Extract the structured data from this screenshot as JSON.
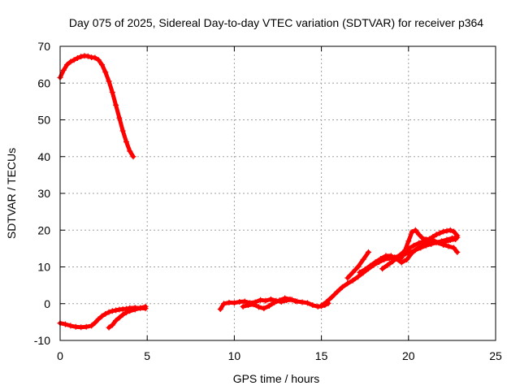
{
  "chart_data": {
    "type": "scatter",
    "title": "Day 075 of 2025, Sidereal Day-to-day VTEC variation (SDTVAR) for receiver p364",
    "xlabel": "GPS time / hours",
    "ylabel": "SDTVAR / TECUs",
    "xlim": [
      0,
      25
    ],
    "ylim": [
      -10,
      70
    ],
    "xticks": [
      0,
      5,
      10,
      15,
      20,
      25
    ],
    "yticks": [
      -10,
      0,
      10,
      20,
      30,
      40,
      50,
      60,
      70
    ],
    "grid": true,
    "marker": "+",
    "color": "#ff0000",
    "series": [
      {
        "name": "track-1",
        "x": [
          0.0,
          0.2,
          0.4,
          0.6,
          0.8,
          1.0,
          1.2,
          1.4,
          1.6,
          1.8,
          2.0,
          2.2,
          2.4,
          2.6,
          2.8,
          3.0,
          3.2,
          3.4,
          3.6,
          3.8,
          4.0,
          4.2
        ],
        "y": [
          61.5,
          63.5,
          65.0,
          65.8,
          66.3,
          66.8,
          67.2,
          67.4,
          67.3,
          67.0,
          66.9,
          66.3,
          65.0,
          63.0,
          60.5,
          57.5,
          54.0,
          50.5,
          47.0,
          44.0,
          41.5,
          40.0
        ]
      },
      {
        "name": "track-2",
        "x": [
          0.0,
          0.3,
          0.6,
          0.9,
          1.2,
          1.5,
          1.8,
          2.0,
          2.2,
          2.4,
          2.6,
          2.8,
          3.0,
          3.2,
          3.4,
          3.6,
          3.8,
          4.0,
          4.3,
          4.6,
          4.9
        ],
        "y": [
          -5.3,
          -5.6,
          -6.0,
          -6.3,
          -6.4,
          -6.3,
          -6.0,
          -5.2,
          -4.2,
          -3.4,
          -2.8,
          -2.3,
          -2.0,
          -1.8,
          -1.6,
          -1.5,
          -1.4,
          -1.2,
          -1.1,
          -1.2,
          -1.3
        ]
      },
      {
        "name": "track-3",
        "x": [
          2.8,
          3.0,
          3.2,
          3.4,
          3.6,
          3.8,
          4.0,
          4.3,
          4.6,
          4.9
        ],
        "y": [
          -6.5,
          -5.8,
          -4.6,
          -3.8,
          -3.0,
          -2.4,
          -2.0,
          -1.6,
          -1.2,
          -0.8
        ]
      },
      {
        "name": "track-4",
        "x": [
          9.2,
          9.4,
          9.7,
          10.0,
          10.3,
          10.6,
          10.9,
          11.2,
          11.5,
          11.8,
          12.1,
          12.4,
          12.7,
          13.0,
          13.3,
          13.6,
          13.9,
          14.2,
          14.5,
          14.8,
          15.0,
          15.2,
          15.4
        ],
        "y": [
          -1.5,
          0.0,
          0.3,
          0.2,
          0.5,
          0.6,
          0.2,
          0.4,
          1.0,
          0.8,
          1.2,
          0.8,
          0.5,
          0.9,
          1.1,
          0.6,
          0.4,
          0.2,
          -0.4,
          -0.8,
          -0.7,
          -0.4,
          0.1
        ]
      },
      {
        "name": "track-5",
        "x": [
          10.5,
          10.8,
          11.1,
          11.4,
          11.7,
          12.0,
          12.3,
          12.6,
          12.9,
          13.2,
          13.5
        ],
        "y": [
          -0.8,
          -0.4,
          -0.2,
          -0.9,
          -1.3,
          -0.6,
          0.3,
          0.9,
          1.5,
          1.2,
          0.7
        ]
      },
      {
        "name": "track-6",
        "x": [
          15.0,
          15.3,
          15.6,
          15.9,
          16.2,
          16.5,
          16.8,
          17.1,
          17.4,
          17.7,
          18.0,
          18.3,
          18.6,
          18.9,
          19.2,
          19.5,
          19.8,
          20.1,
          20.4,
          20.7,
          21.0,
          21.3,
          21.6,
          21.9,
          22.2,
          22.5,
          22.8
        ],
        "y": [
          -0.5,
          0.5,
          1.8,
          3.2,
          4.5,
          5.5,
          6.3,
          7.3,
          8.4,
          9.5,
          10.5,
          11.3,
          12.0,
          12.3,
          12.6,
          13.0,
          13.5,
          14.0,
          14.6,
          15.2,
          15.8,
          16.2,
          16.6,
          17.0,
          17.4,
          17.8,
          18.0
        ]
      },
      {
        "name": "track-7",
        "x": [
          17.2,
          17.5,
          17.8,
          18.1,
          18.4,
          18.7,
          19.0,
          19.3,
          19.6,
          19.9,
          20.2,
          20.5,
          20.8,
          21.1,
          21.4,
          21.7,
          22.0,
          22.3,
          22.6,
          22.8
        ],
        "y": [
          8.5,
          9.3,
          10.3,
          11.3,
          12.2,
          13.0,
          13.0,
          12.2,
          11.2,
          12.0,
          13.8,
          15.0,
          15.8,
          16.5,
          17.2,
          16.6,
          16.0,
          15.6,
          15.2,
          14.0
        ]
      },
      {
        "name": "track-8",
        "x": [
          16.5,
          16.8,
          17.1,
          17.4,
          17.7
        ],
        "y": [
          7.0,
          8.5,
          10.0,
          12.0,
          14.0
        ]
      },
      {
        "name": "track-9",
        "x": [
          19.6,
          19.8,
          20.0,
          20.2,
          20.4,
          20.6,
          20.8,
          21.0,
          21.2,
          21.4,
          21.6,
          21.8,
          22.0,
          22.2,
          22.4,
          22.6,
          22.8
        ],
        "y": [
          12.5,
          14.5,
          17.0,
          19.5,
          20.0,
          18.8,
          17.8,
          17.5,
          17.6,
          18.2,
          18.8,
          19.2,
          19.6,
          19.8,
          20.0,
          19.6,
          18.5
        ]
      },
      {
        "name": "track-10",
        "x": [
          18.5,
          18.8,
          19.1,
          19.4,
          19.7,
          20.0,
          20.3,
          20.6,
          20.9,
          21.2,
          21.5,
          21.8,
          22.1,
          22.4,
          22.7
        ],
        "y": [
          9.5,
          10.5,
          11.5,
          12.8,
          14.0,
          15.0,
          15.8,
          16.5,
          17.0,
          17.3,
          17.0,
          16.5,
          16.8,
          17.3,
          17.5
        ]
      }
    ]
  }
}
